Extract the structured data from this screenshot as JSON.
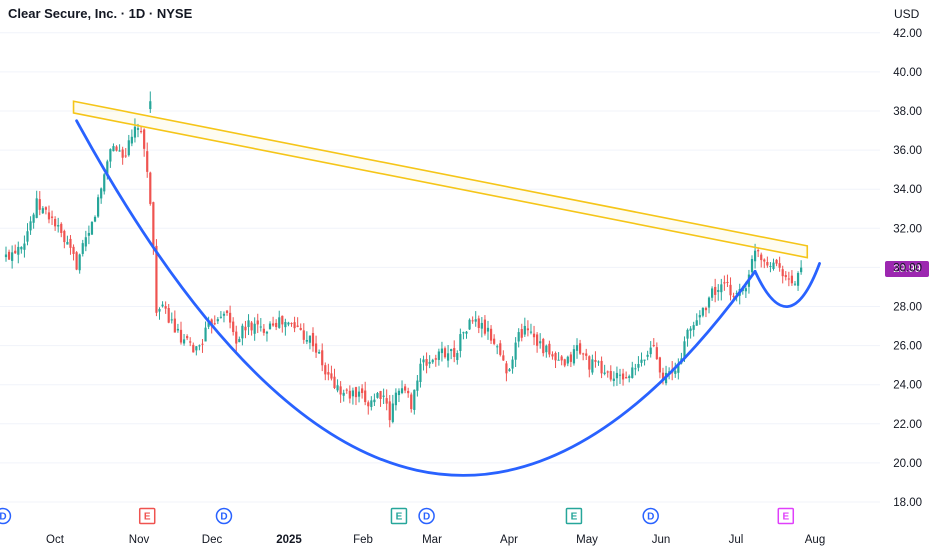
{
  "header": {
    "title": "Clear Secure, Inc. · 1D · NYSE",
    "currency": "USD"
  },
  "colors": {
    "up": "#26a69a",
    "down": "#ef5350",
    "last_price": "#9c27b0",
    "resistance": "#f5c518",
    "cup": "#2962ff",
    "dividend": "#2962ff",
    "earnings_red": "#ef5350",
    "earnings_green": "#26a69a",
    "earnings_purple": "#e040fb",
    "text": "#131722",
    "grid": "#f0f3fa"
  },
  "chart_data": {
    "type": "candlestick",
    "title": "Clear Secure, Inc. · 1D · NYSE",
    "y_axis": {
      "ticks": [
        "42.00",
        "40.00",
        "38.00",
        "36.00",
        "34.00",
        "32.00",
        "30.00",
        "28.00",
        "26.00",
        "24.00",
        "22.00",
        "20.00",
        "18.00"
      ],
      "range": [
        17.2,
        43.0
      ]
    },
    "x_axis": {
      "ticks": [
        "Oct",
        "Nov",
        "Dec",
        "2025",
        "Feb",
        "Mar",
        "Apr",
        "May",
        "Jun",
        "Jul",
        "Aug"
      ],
      "bold_tick": "2025"
    },
    "last_price": "29.99",
    "anchors": [
      {
        "t": 0,
        "p": 30.5
      },
      {
        "t": 6,
        "p": 31.5
      },
      {
        "t": 10,
        "p": 33.2
      },
      {
        "t": 15,
        "p": 32.5
      },
      {
        "t": 20,
        "p": 31.0
      },
      {
        "t": 23,
        "p": 30.2
      },
      {
        "t": 27,
        "p": 31.6
      },
      {
        "t": 31,
        "p": 34.0
      },
      {
        "t": 34,
        "p": 36.2
      },
      {
        "t": 39,
        "p": 35.8
      },
      {
        "t": 43,
        "p": 37.3
      },
      {
        "t": 46,
        "p": 35.2
      },
      {
        "t": 48,
        "p": 31.0
      },
      {
        "t": 49,
        "p": 28.0
      },
      {
        "t": 53,
        "p": 27.5
      },
      {
        "t": 57,
        "p": 26.2
      },
      {
        "t": 62,
        "p": 25.8
      },
      {
        "t": 67,
        "p": 27.2
      },
      {
        "t": 71,
        "p": 27.9
      },
      {
        "t": 75,
        "p": 26.3
      },
      {
        "t": 79,
        "p": 27.1
      },
      {
        "t": 83,
        "p": 26.8
      },
      {
        "t": 87,
        "p": 27.3
      },
      {
        "t": 91,
        "p": 27.1
      },
      {
        "t": 95,
        "p": 26.9
      },
      {
        "t": 100,
        "p": 26.2
      },
      {
        "t": 104,
        "p": 24.6
      },
      {
        "t": 109,
        "p": 23.6
      },
      {
        "t": 114,
        "p": 23.4
      },
      {
        "t": 118,
        "p": 23.1
      },
      {
        "t": 122,
        "p": 23.6
      },
      {
        "t": 125,
        "p": 22.3
      },
      {
        "t": 128,
        "p": 24.0
      },
      {
        "t": 132,
        "p": 23.1
      },
      {
        "t": 135,
        "p": 24.9
      },
      {
        "t": 139,
        "p": 25.3
      },
      {
        "t": 143,
        "p": 25.7
      },
      {
        "t": 146,
        "p": 25.6
      },
      {
        "t": 149,
        "p": 26.7
      },
      {
        "t": 152,
        "p": 27.3
      },
      {
        "t": 156,
        "p": 26.8
      },
      {
        "t": 160,
        "p": 26.0
      },
      {
        "t": 163,
        "p": 24.6
      },
      {
        "t": 167,
        "p": 26.5
      },
      {
        "t": 170,
        "p": 27.0
      },
      {
        "t": 174,
        "p": 26.1
      },
      {
        "t": 178,
        "p": 25.3
      },
      {
        "t": 182,
        "p": 24.9
      },
      {
        "t": 186,
        "p": 25.9
      },
      {
        "t": 190,
        "p": 25.1
      },
      {
        "t": 193,
        "p": 24.9
      },
      {
        "t": 197,
        "p": 24.4
      },
      {
        "t": 200,
        "p": 24.3
      },
      {
        "t": 204,
        "p": 24.6
      },
      {
        "t": 207,
        "p": 25.1
      },
      {
        "t": 211,
        "p": 26.1
      },
      {
        "t": 214,
        "p": 24.4
      },
      {
        "t": 218,
        "p": 24.6
      },
      {
        "t": 222,
        "p": 26.6
      },
      {
        "t": 226,
        "p": 27.6
      },
      {
        "t": 230,
        "p": 28.7
      },
      {
        "t": 234,
        "p": 29.0
      },
      {
        "t": 238,
        "p": 28.6
      },
      {
        "t": 242,
        "p": 29.4
      },
      {
        "t": 244,
        "p": 31.1
      },
      {
        "t": 247,
        "p": 30.4
      },
      {
        "t": 250,
        "p": 30.3
      },
      {
        "t": 253,
        "p": 29.9
      },
      {
        "t": 256,
        "p": 29.0
      },
      {
        "t": 259,
        "p": 29.99
      }
    ],
    "outlier_bar": {
      "t": 47,
      "open": 38.5,
      "close": 38.1,
      "high": 39.0,
      "low": 37.9
    },
    "resistance_channel": {
      "start": {
        "t": 22,
        "p": 38.2
      },
      "end": {
        "t": 261,
        "p": 30.8
      },
      "width": 0.6
    },
    "cup_curve": {
      "start": {
        "t": 23,
        "p": 37.5
      },
      "control": {
        "t": 134,
        "p": 5.6
      },
      "end": {
        "t": 244,
        "p": 29.8
      }
    },
    "handle_curve": {
      "start": {
        "t": 244,
        "p": 29.8
      },
      "control": {
        "t": 255,
        "p": 26.0
      },
      "end": {
        "t": 265,
        "p": 30.2
      }
    },
    "events": [
      {
        "label": "D",
        "kind": "dividend",
        "t": -1
      },
      {
        "label": "E",
        "kind": "earnings_red",
        "t": 46
      },
      {
        "label": "D",
        "kind": "dividend",
        "t": 71
      },
      {
        "label": "E",
        "kind": "earnings_green",
        "t": 128
      },
      {
        "label": "D",
        "kind": "dividend",
        "t": 137
      },
      {
        "label": "E",
        "kind": "earnings_green",
        "t": 185
      },
      {
        "label": "D",
        "kind": "dividend",
        "t": 210
      },
      {
        "label": "E",
        "kind": "earnings_purple",
        "t": 254
      }
    ]
  }
}
